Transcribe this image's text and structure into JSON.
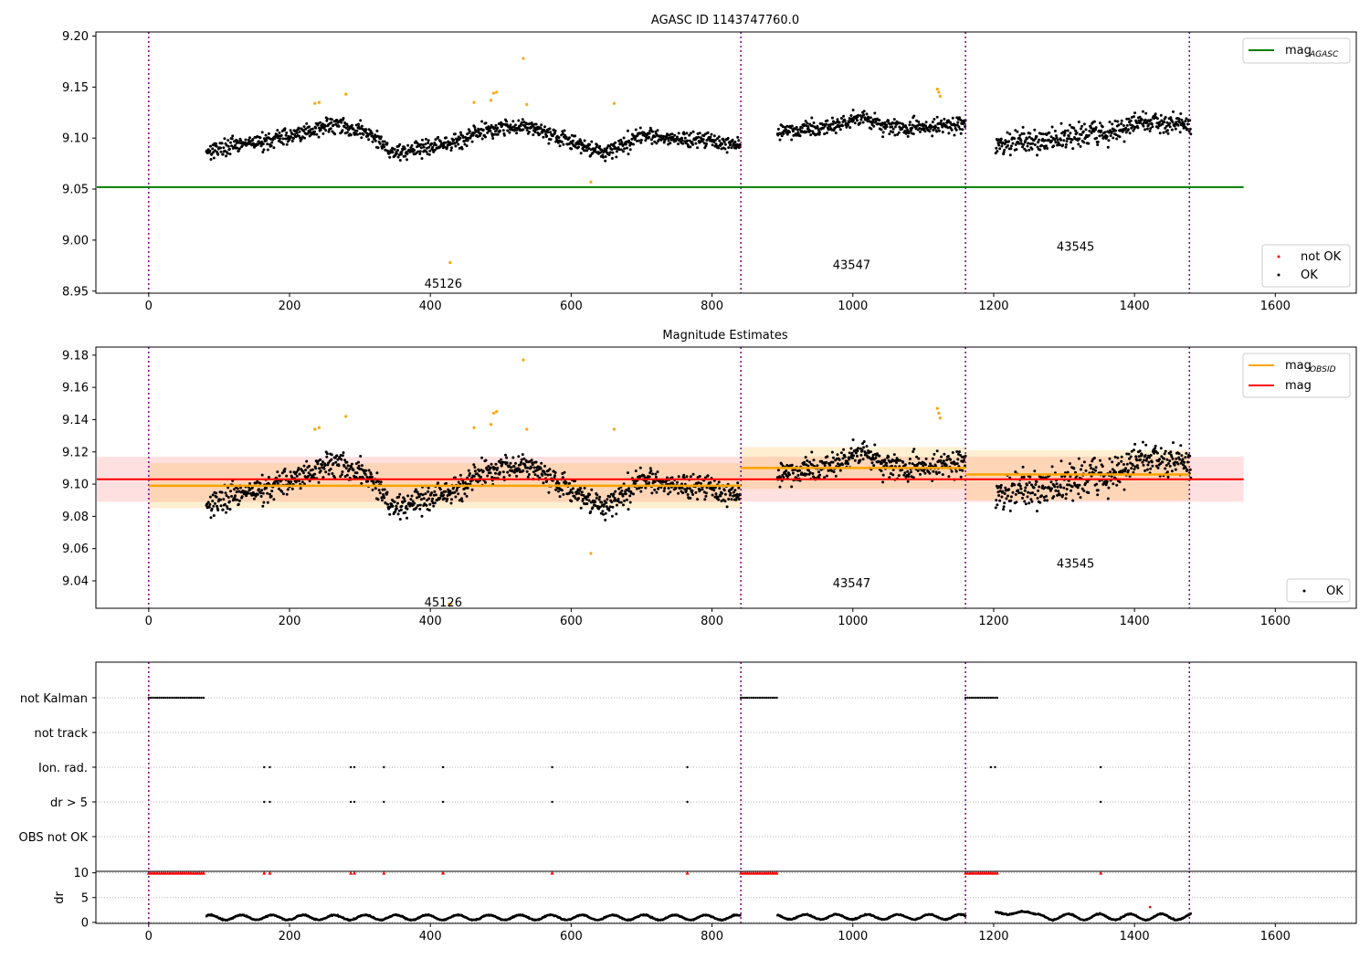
{
  "chart_data": [
    {
      "type": "scatter",
      "title": "AGASC ID 1143747760.0",
      "xlim": [
        -75,
        1715
      ],
      "ylim": [
        8.948,
        9.204
      ],
      "xticks": [
        0,
        200,
        400,
        600,
        800,
        1000,
        1200,
        1400,
        1600
      ],
      "yticks": [
        8.95,
        9.0,
        9.05,
        9.1,
        9.15,
        9.2
      ],
      "ytick_labels": [
        "8.95",
        "9.00",
        "9.05",
        "9.10",
        "9.15",
        "9.20"
      ],
      "obs_boundaries": [
        0,
        841,
        1160,
        1478
      ],
      "obs_labels": [
        {
          "text": "45126",
          "x": 420,
          "y": 8.958
        },
        {
          "text": "43547",
          "x": 1000,
          "y": 8.976
        },
        {
          "text": "43545",
          "x": 1318,
          "y": 8.994
        }
      ],
      "mag_agasc": 9.052,
      "mag_agasc_x": [
        -75,
        1555
      ],
      "legend_lines": {
        "main": "mag",
        "sub": "AGASC",
        "color": "#008000"
      },
      "legend_points": [
        {
          "label": "not OK",
          "color": "#ff0000"
        },
        {
          "label": "OK",
          "color": "#000000"
        }
      ],
      "segments": [
        {
          "x0": 82,
          "x1": 840,
          "base": 9.098,
          "wave": [
            [
              0.0,
              -0.01
            ],
            [
              0.12,
              0.0
            ],
            [
              0.24,
              0.015
            ],
            [
              0.3,
              0.008
            ],
            [
              0.35,
              -0.012
            ],
            [
              0.45,
              -0.005
            ],
            [
              0.52,
              0.01
            ],
            [
              0.6,
              0.015
            ],
            [
              0.68,
              -0.002
            ],
            [
              0.75,
              -0.012
            ],
            [
              0.82,
              0.005
            ],
            [
              1.0,
              -0.004
            ]
          ],
          "noise": 0.008
        },
        {
          "x0": 893,
          "x1": 1160,
          "base": 9.11,
          "wave": [
            [
              0.0,
              -0.004
            ],
            [
              0.3,
              0.002
            ],
            [
              0.45,
              0.01
            ],
            [
              0.6,
              0.0
            ],
            [
              1.0,
              0.002
            ]
          ],
          "noise": 0.008
        },
        {
          "x0": 1203,
          "x1": 1480,
          "base": 9.105,
          "wave": [
            [
              0.0,
              -0.01
            ],
            [
              0.3,
              -0.006
            ],
            [
              0.55,
              0.0
            ],
            [
              0.8,
              0.012
            ],
            [
              1.0,
              0.008
            ]
          ],
          "noise": 0.011
        }
      ],
      "outliers": [
        {
          "x": 236,
          "y": 9.134
        },
        {
          "x": 242,
          "y": 9.135
        },
        {
          "x": 280,
          "y": 9.143
        },
        {
          "x": 428,
          "y": 8.978
        },
        {
          "x": 462,
          "y": 9.135
        },
        {
          "x": 486,
          "y": 9.137
        },
        {
          "x": 490,
          "y": 9.144
        },
        {
          "x": 494,
          "y": 9.145
        },
        {
          "x": 532,
          "y": 9.178
        },
        {
          "x": 537,
          "y": 9.133
        },
        {
          "x": 628,
          "y": 9.057
        },
        {
          "x": 661,
          "y": 9.134
        },
        {
          "x": 1120,
          "y": 9.148
        },
        {
          "x": 1122,
          "y": 9.145
        },
        {
          "x": 1124,
          "y": 9.141
        }
      ]
    },
    {
      "type": "scatter",
      "title": "Magnitude Estimates",
      "xlim": [
        -75,
        1715
      ],
      "ylim": [
        9.023,
        9.185
      ],
      "xticks": [
        0,
        200,
        400,
        600,
        800,
        1000,
        1200,
        1400,
        1600
      ],
      "yticks": [
        9.04,
        9.06,
        9.08,
        9.1,
        9.12,
        9.14,
        9.16,
        9.18
      ],
      "ytick_labels": [
        "9.04",
        "9.06",
        "9.08",
        "9.10",
        "9.12",
        "9.14",
        "9.16",
        "9.18"
      ],
      "obs_boundaries": [
        0,
        841,
        1160,
        1478
      ],
      "obs_labels": [
        {
          "text": "45126",
          "x": 420,
          "y": 9.027
        },
        {
          "text": "43547",
          "x": 1000,
          "y": 9.039
        },
        {
          "text": "43545",
          "x": 1318,
          "y": 9.051
        }
      ],
      "mag": 9.103,
      "mag_band": [
        9.089,
        9.117
      ],
      "mag_x": [
        -75,
        1555
      ],
      "mag_obsid": [
        {
          "x0": 0,
          "x1": 841,
          "y": 9.099,
          "band": [
            9.085,
            9.113
          ]
        },
        {
          "x0": 841,
          "x1": 1160,
          "y": 9.11,
          "band": [
            9.097,
            9.123
          ]
        },
        {
          "x0": 1160,
          "x1": 1478,
          "y": 9.106,
          "band": [
            9.09,
            9.121
          ]
        }
      ],
      "legend_lines": [
        {
          "main": "mag",
          "sub": "OBSID",
          "color": "#ffa500"
        },
        {
          "main": "mag",
          "sub": "",
          "color": "#ff0000"
        }
      ],
      "legend_points": [
        {
          "label": "OK",
          "color": "#000000"
        }
      ],
      "outliers": [
        {
          "x": 236,
          "y": 9.134
        },
        {
          "x": 242,
          "y": 9.135
        },
        {
          "x": 280,
          "y": 9.142
        },
        {
          "x": 428,
          "y": 9.025
        },
        {
          "x": 462,
          "y": 9.135
        },
        {
          "x": 486,
          "y": 9.137
        },
        {
          "x": 490,
          "y": 9.144
        },
        {
          "x": 494,
          "y": 9.145
        },
        {
          "x": 532,
          "y": 9.177
        },
        {
          "x": 537,
          "y": 9.134
        },
        {
          "x": 628,
          "y": 9.057
        },
        {
          "x": 661,
          "y": 9.134
        },
        {
          "x": 1120,
          "y": 9.147
        },
        {
          "x": 1122,
          "y": 9.144
        },
        {
          "x": 1124,
          "y": 9.141
        }
      ]
    },
    {
      "type": "scatter",
      "title": "",
      "xlim": [
        -75,
        1715
      ],
      "categories": [
        "not Kalman",
        "not track",
        "Ion. rad.",
        "dr > 5",
        "OBS not OK"
      ],
      "not_kalman_ranges": [
        [
          0,
          80
        ],
        [
          841,
          893
        ],
        [
          1160,
          1207
        ]
      ],
      "ion_rad_x": [
        164,
        172,
        287,
        292,
        334,
        418,
        573,
        765,
        1196,
        1202,
        1352
      ],
      "dr_gt5_x": [
        164,
        172,
        287,
        292,
        334,
        418,
        573,
        765,
        1352
      ],
      "obs_boundaries": [
        0,
        841,
        1160,
        1478
      ]
    },
    {
      "type": "scatter",
      "title": "",
      "ylabel": "dr",
      "xlim": [
        -75,
        1715
      ],
      "ylim": [
        -0.2,
        10.3
      ],
      "yticks": [
        0,
        5,
        10
      ],
      "ytick_labels": [
        "0",
        "5",
        "10"
      ],
      "xticks": [
        0,
        200,
        400,
        600,
        800,
        1000,
        1200,
        1400,
        1600
      ],
      "obs_boundaries": [
        0,
        841,
        1160,
        1478
      ],
      "clip_value": 10,
      "clip_x": [
        164,
        172,
        287,
        292,
        334,
        418,
        573,
        765,
        1352
      ],
      "clip_ranges": [
        [
          0,
          80
        ],
        [
          841,
          893
        ],
        [
          1160,
          1207
        ]
      ],
      "dr_segments": [
        {
          "x0": 82,
          "x1": 840,
          "base": 1.0,
          "amp": 0.5
        },
        {
          "x0": 893,
          "x1": 1160,
          "base": 1.1,
          "amp": 0.5
        },
        {
          "x0": 1203,
          "x1": 1260,
          "base": 1.9,
          "amp": 0.3
        },
        {
          "x0": 1262,
          "x1": 1480,
          "base": 1.1,
          "amp": 0.6
        }
      ],
      "dr_outliers": [
        {
          "x": 1422,
          "y": 3.1
        }
      ]
    }
  ]
}
